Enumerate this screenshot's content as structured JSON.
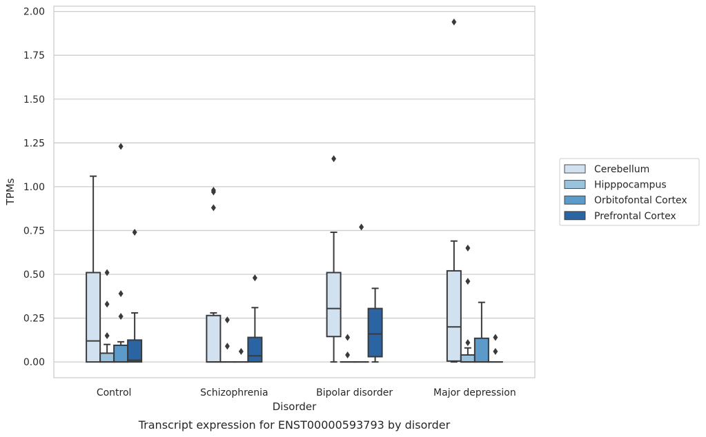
{
  "caption": "Transcript expression for ENST00000593793 by disorder",
  "chart_data": {
    "type": "box",
    "xlabel": "Disorder",
    "ylabel": "TPMs",
    "ylim": [
      -0.09,
      2.03
    ],
    "yticks": [
      "0.00",
      "0.25",
      "0.50",
      "0.75",
      "1.00",
      "1.25",
      "1.50",
      "1.75",
      "2.00"
    ],
    "categories": [
      "Control",
      "Schizophrenia",
      "Bipolar disorder",
      "Major depression"
    ],
    "grid": "horizontal",
    "legend_position": "right",
    "series": [
      {
        "name": "Cerebellum",
        "color": "#d1e1f0",
        "boxes": [
          {
            "whislo": 0.0,
            "q1": 0.0,
            "med": 0.12,
            "q3": 0.51,
            "whishi": 1.06,
            "fliers": []
          },
          {
            "whislo": 0.0,
            "q1": 0.0,
            "med": 0.0,
            "q3": 0.265,
            "whishi": 0.28,
            "fliers": [
              0.88,
              0.97,
              0.98
            ]
          },
          {
            "whislo": 0.0,
            "q1": 0.145,
            "med": 0.305,
            "q3": 0.51,
            "whishi": 0.74,
            "fliers": [
              1.16
            ]
          },
          {
            "whislo": 0.0,
            "q1": 0.005,
            "med": 0.2,
            "q3": 0.52,
            "whishi": 0.69,
            "fliers": [
              1.94
            ]
          }
        ]
      },
      {
        "name": "Hipppocampus",
        "color": "#9bc2dd",
        "boxes": [
          {
            "whislo": 0.0,
            "q1": 0.0,
            "med": 0.0,
            "q3": 0.05,
            "whishi": 0.1,
            "fliers": [
              0.15,
              0.33,
              0.51
            ]
          },
          {
            "whislo": 0.0,
            "q1": 0.0,
            "med": 0.0,
            "q3": 0.0,
            "whishi": 0.0,
            "fliers": [
              0.09,
              0.24
            ]
          },
          {
            "whislo": 0.0,
            "q1": 0.0,
            "med": 0.0,
            "q3": 0.0,
            "whishi": 0.0,
            "fliers": [
              0.04,
              0.14
            ]
          },
          {
            "whislo": 0.0,
            "q1": 0.0,
            "med": 0.0,
            "q3": 0.04,
            "whishi": 0.08,
            "fliers": [
              0.11,
              0.46,
              0.65
            ]
          }
        ]
      },
      {
        "name": "Orbitofontal Cortex",
        "color": "#5c9bc9",
        "boxes": [
          {
            "whislo": 0.0,
            "q1": 0.0,
            "med": 0.0,
            "q3": 0.095,
            "whishi": 0.115,
            "fliers": [
              0.26,
              0.39,
              1.23
            ]
          },
          {
            "whislo": 0.0,
            "q1": 0.0,
            "med": 0.0,
            "q3": 0.0,
            "whishi": 0.0,
            "fliers": [
              0.06
            ]
          },
          {
            "whislo": 0.0,
            "q1": 0.0,
            "med": 0.0,
            "q3": 0.0,
            "whishi": 0.0,
            "fliers": [
              0.77
            ]
          },
          {
            "whislo": 0.0,
            "q1": 0.0,
            "med": 0.0,
            "q3": 0.135,
            "whishi": 0.34,
            "fliers": []
          }
        ]
      },
      {
        "name": "Prefrontal Cortex",
        "color": "#2a64a2",
        "boxes": [
          {
            "whislo": 0.0,
            "q1": 0.0,
            "med": 0.01,
            "q3": 0.125,
            "whishi": 0.28,
            "fliers": [
              0.74
            ]
          },
          {
            "whislo": 0.0,
            "q1": 0.0,
            "med": 0.035,
            "q3": 0.14,
            "whishi": 0.31,
            "fliers": [
              0.48
            ]
          },
          {
            "whislo": 0.0,
            "q1": 0.03,
            "med": 0.16,
            "q3": 0.305,
            "whishi": 0.42,
            "fliers": []
          },
          {
            "whislo": 0.0,
            "q1": 0.0,
            "med": 0.0,
            "q3": 0.0,
            "whishi": 0.0,
            "fliers": [
              0.06,
              0.14
            ]
          }
        ]
      }
    ]
  }
}
